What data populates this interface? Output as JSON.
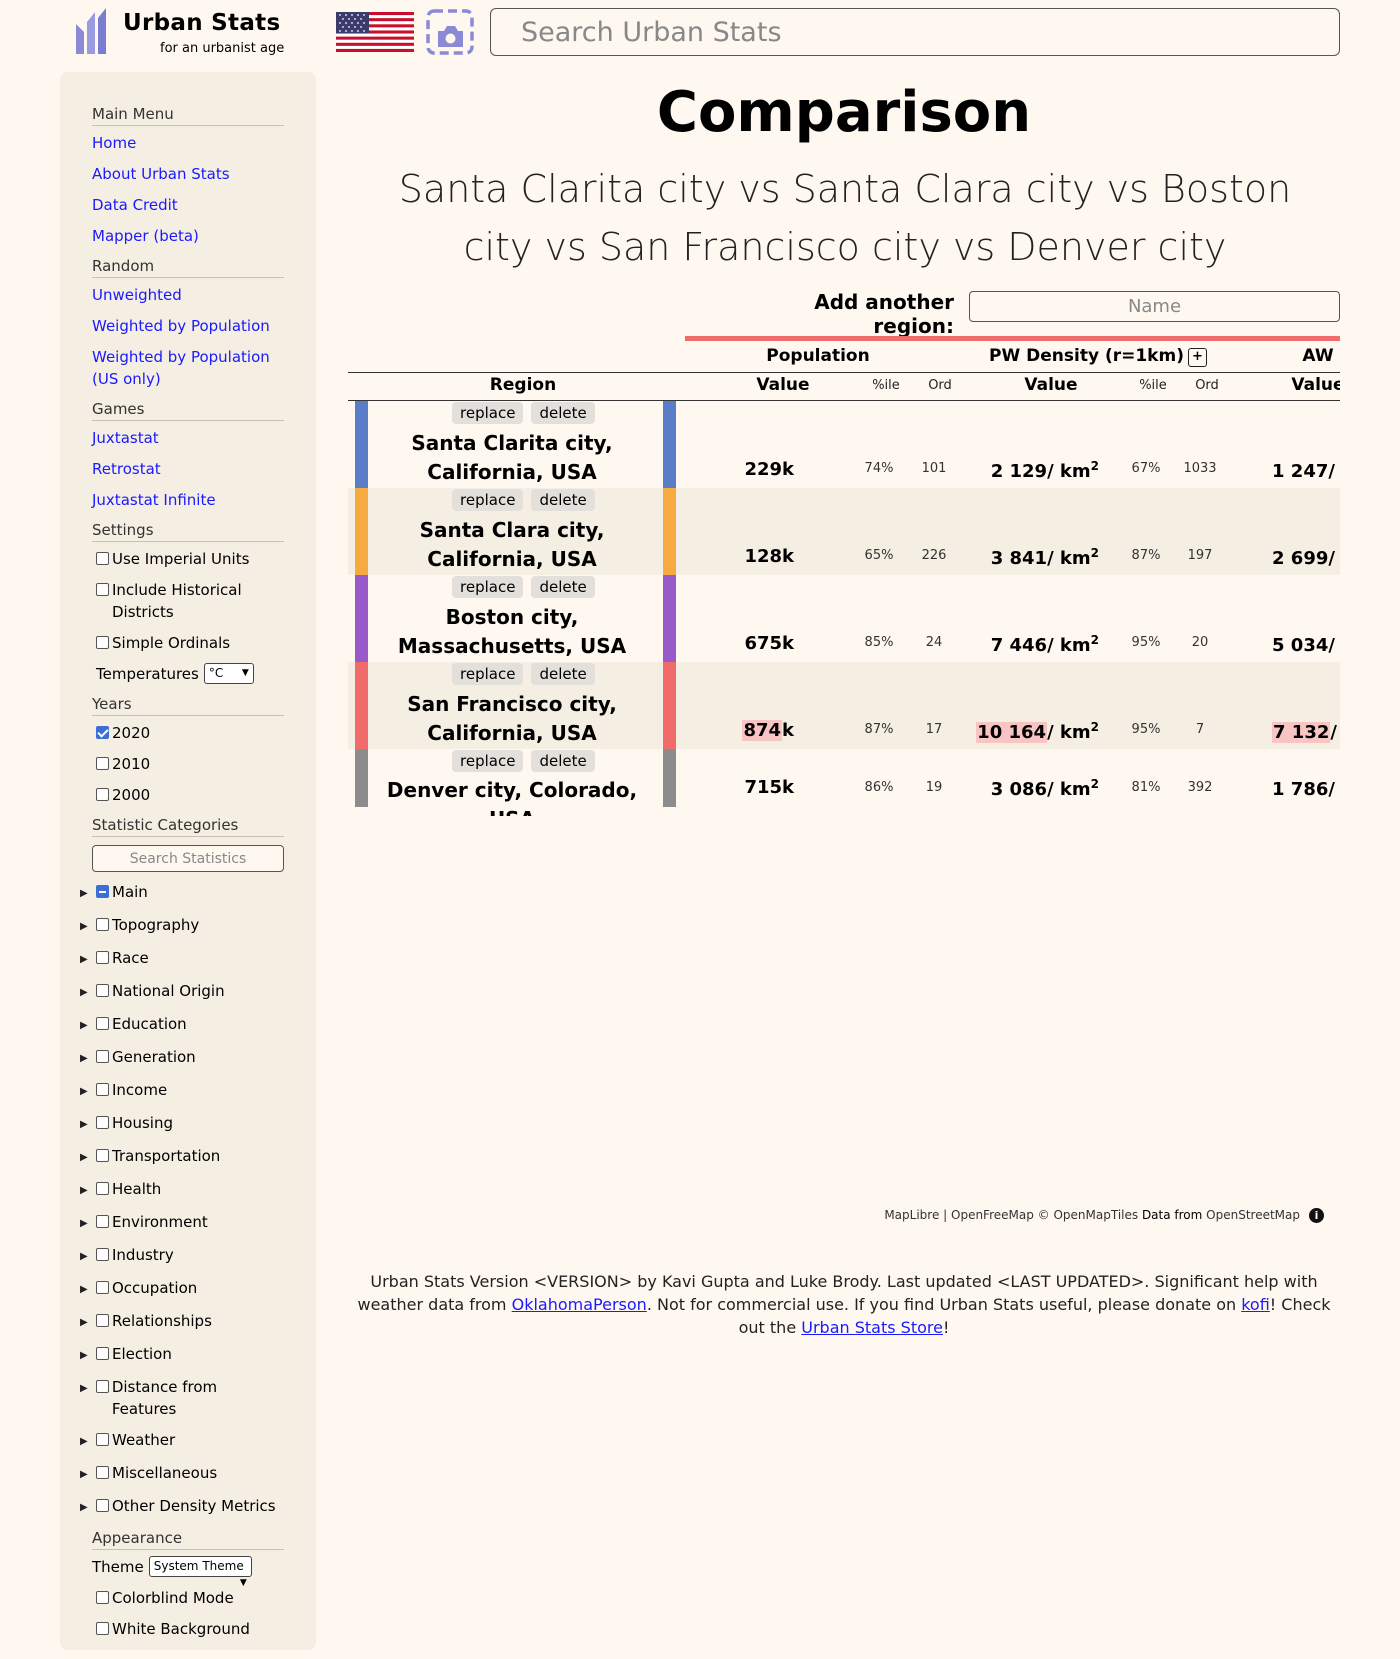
{
  "header": {
    "logo_title": "Urban Stats",
    "logo_subtitle": "for an urbanist age",
    "search_placeholder": "Search Urban Stats"
  },
  "sidebar": {
    "main_menu": {
      "heading": "Main Menu",
      "links": [
        "Home",
        "About Urban Stats",
        "Data Credit",
        "Mapper (beta)"
      ]
    },
    "random": {
      "heading": "Random",
      "links": [
        "Unweighted",
        "Weighted by Population",
        "Weighted by Population (US only)"
      ]
    },
    "games": {
      "heading": "Games",
      "links": [
        "Juxtastat",
        "Retrostat",
        "Juxtastat Infinite"
      ]
    },
    "settings": {
      "heading": "Settings",
      "use_imperial": "Use Imperial Units",
      "include_historical": "Include Historical Districts",
      "simple_ordinals": "Simple Ordinals",
      "temperatures_label": "Temperatures",
      "temperatures_value": "°C"
    },
    "years": {
      "heading": "Years",
      "items": [
        {
          "label": "2020",
          "checked": true
        },
        {
          "label": "2010",
          "checked": false
        },
        {
          "label": "2000",
          "checked": false
        }
      ]
    },
    "categories": {
      "heading": "Statistic Categories",
      "search_placeholder": "Search Statistics",
      "items": [
        "Main",
        "Topography",
        "Race",
        "National Origin",
        "Education",
        "Generation",
        "Income",
        "Housing",
        "Transportation",
        "Health",
        "Environment",
        "Industry",
        "Occupation",
        "Relationships",
        "Election",
        "Distance from Features",
        "Weather",
        "Miscellaneous",
        "Other Density Metrics"
      ]
    },
    "appearance": {
      "heading": "Appearance",
      "theme_label": "Theme",
      "theme_value": "System Theme",
      "colorblind": "Colorblind Mode",
      "white_background": "White Background"
    }
  },
  "main": {
    "title": "Comparison",
    "subtitle": "Santa Clarita city vs Santa Clara city vs Boston city vs San Francisco city vs Denver city",
    "add_region_label": "Add another region:",
    "add_region_placeholder": "Name",
    "table": {
      "groups": [
        "Population",
        "PW Density (r=1km)",
        "AW"
      ],
      "plus": "+",
      "col_region": "Region",
      "col_value": "Value",
      "col_pct": "%ile",
      "col_ord": "Ord",
      "replace_label": "replace",
      "delete_label": "delete",
      "density_unit": "/ km",
      "density_exp": "2",
      "rows": [
        {
          "name": "Santa Clarita city, California, USA",
          "color": "#5a7dc8",
          "pop_num": "229",
          "pop_suffix": "k",
          "pop_pct": "74%",
          "pop_ord": "101",
          "pw": "2 129",
          "pw_pct": "67%",
          "pw_ord": "1033",
          "aw": "1 247",
          "highlight": false
        },
        {
          "name": "Santa Clara city, California, USA",
          "color": "#f7aa41",
          "pop_num": "128",
          "pop_suffix": "k",
          "pop_pct": "65%",
          "pop_ord": "226",
          "pw": "3 841",
          "pw_pct": "87%",
          "pw_ord": "197",
          "aw": "2 699",
          "highlight": false
        },
        {
          "name": "Boston city, Massachusetts, USA",
          "color": "#975ac8",
          "pop_num": "675",
          "pop_suffix": "k",
          "pop_pct": "85%",
          "pop_ord": "24",
          "pw": "7 446",
          "pw_pct": "95%",
          "pw_ord": "20",
          "aw": "5 034",
          "highlight": false
        },
        {
          "name": "San Francisco city, California, USA",
          "color": "#f26b6b",
          "pop_num": "874",
          "pop_suffix": "k",
          "pop_pct": "87%",
          "pop_ord": "17",
          "pw": "10 164",
          "pw_pct": "95%",
          "pw_ord": "7",
          "aw": "7 132",
          "highlight": true
        },
        {
          "name": "Denver city, Colorado, USA",
          "color": "#8c8c8c",
          "pop_num": "715",
          "pop_suffix": "k",
          "pop_pct": "86%",
          "pop_ord": "19",
          "pw": "3 086",
          "pw_pct": "81%",
          "pw_ord": "392",
          "aw": "1 786",
          "highlight": false
        }
      ]
    }
  },
  "attribution": {
    "maplibre": "MapLibre",
    "sep": " | ",
    "openfreemap": "OpenFreeMap",
    "copyright": " © ",
    "openmaptiles": "OpenMapTiles",
    "data_from": " Data from ",
    "osm": "OpenStreetMap",
    "info": "i"
  },
  "footer": {
    "text1": "Urban Stats Version <VERSION> by Kavi Gupta and Luke Brody. Last updated <LAST UPDATED>. Significant help with weather data from ",
    "link1": "OklahomaPerson",
    "text2": ". Not for commercial use. If you find Urban Stats useful, please donate on ",
    "link2": "kofi",
    "text3": "! Check out the ",
    "link3": "Urban Stats Store",
    "text4": "!"
  },
  "colors": {
    "background": "#fff8f0",
    "sidebar": "#f5eee3",
    "link": "#1a1aff",
    "accent_bar": "#f06b6b",
    "highlight": "#f9c4c4"
  }
}
